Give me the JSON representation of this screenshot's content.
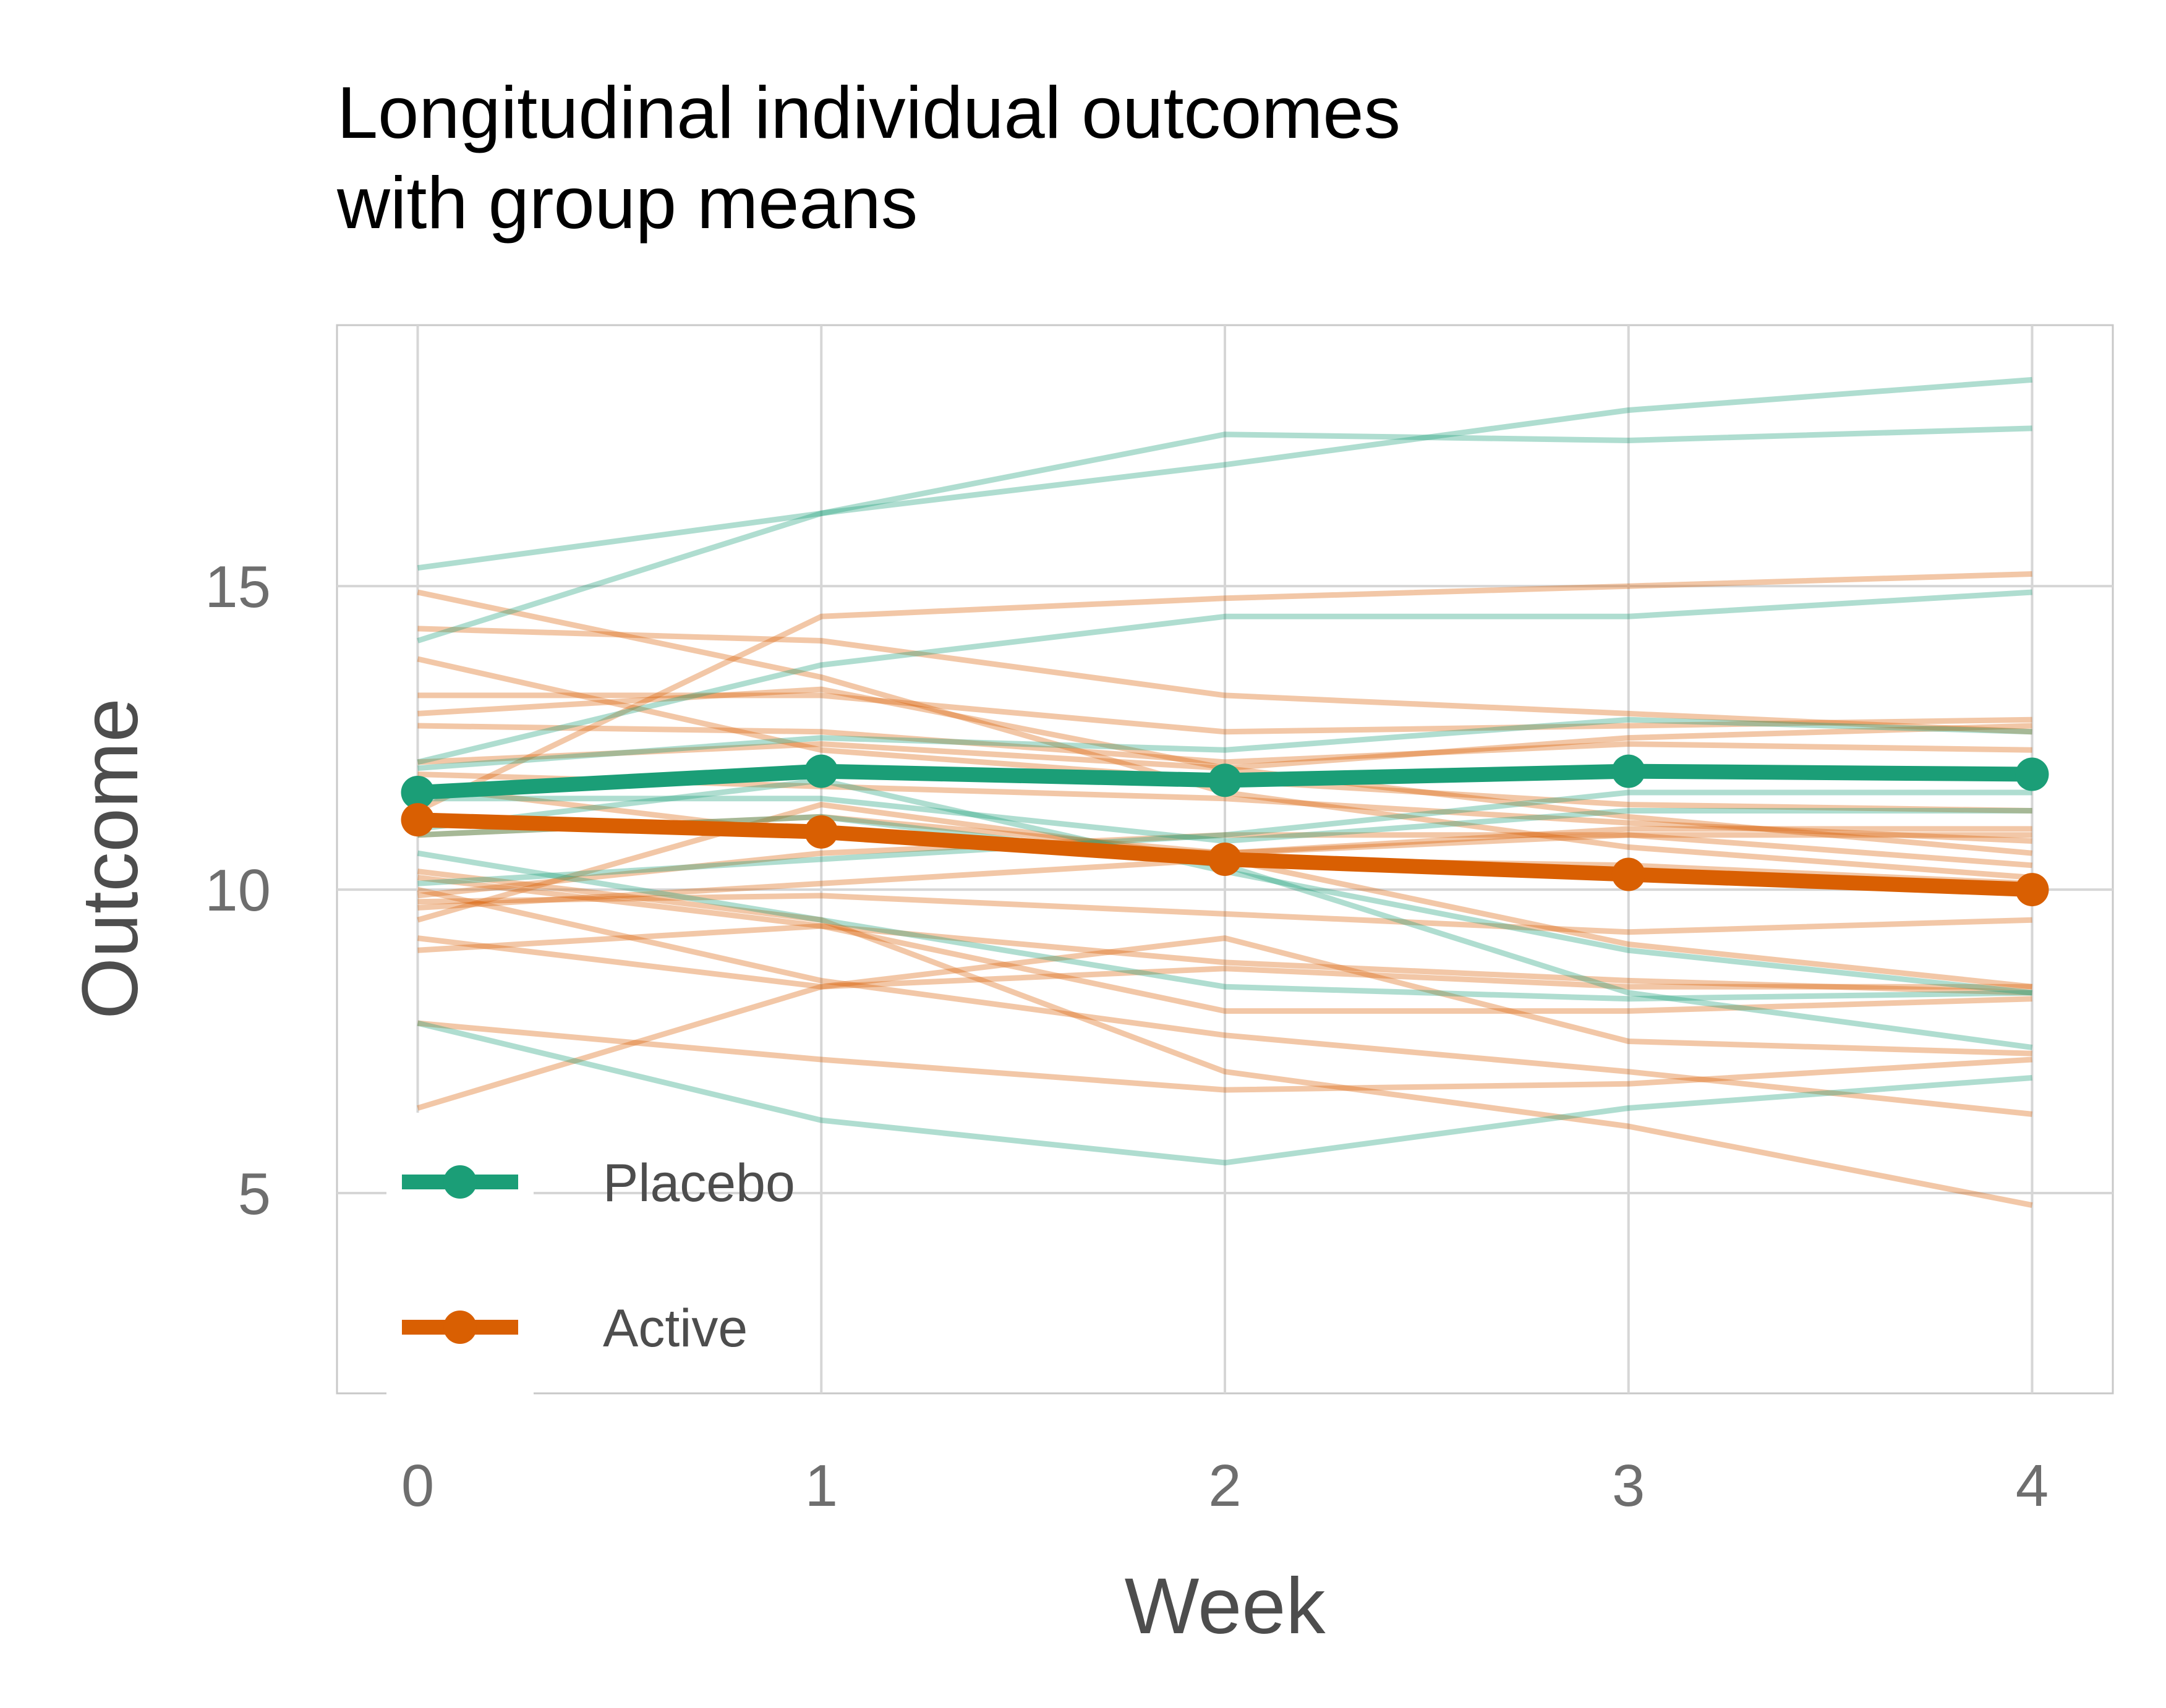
{
  "chart_data": {
    "type": "line",
    "title_lines": [
      "Longitudinal individual outcomes",
      "with group means"
    ],
    "xlabel": "Week",
    "ylabel": "Outcome",
    "x": [
      0,
      1,
      2,
      3,
      4
    ],
    "xlim": [
      -0.2,
      4.2
    ],
    "ylim": [
      1.7,
      19.3
    ],
    "xticks": [
      "0",
      "1",
      "2",
      "3",
      "4"
    ],
    "yticks": [
      5,
      10,
      15
    ],
    "grid": true,
    "legend_position": "bottom-left",
    "colors": {
      "Placebo": "#1b9e77",
      "Active": "#d95f02"
    },
    "legend": [
      {
        "label": "Placebo",
        "color": "#1b9e77"
      },
      {
        "label": "Active",
        "color": "#d95f02"
      }
    ],
    "means": [
      {
        "group": "Placebo",
        "values": [
          11.6,
          11.95,
          11.8,
          11.95,
          11.9
        ]
      },
      {
        "group": "Active",
        "values": [
          11.15,
          10.95,
          10.5,
          10.25,
          10.0
        ]
      }
    ],
    "individuals": {
      "Placebo": [
        [
          15.3,
          16.2,
          17.5,
          17.4,
          17.6
        ],
        [
          14.1,
          16.2,
          17.0,
          17.9,
          18.4
        ],
        [
          12.1,
          13.7,
          14.5,
          14.5,
          14.9
        ],
        [
          12.0,
          12.5,
          12.3,
          12.8,
          12.6
        ],
        [
          11.5,
          11.5,
          10.8,
          11.3,
          11.3
        ],
        [
          11.0,
          11.8,
          10.3,
          9.0,
          8.3
        ],
        [
          10.6,
          9.5,
          8.4,
          8.2,
          8.3
        ],
        [
          10.9,
          11.2,
          10.4,
          8.3,
          7.4
        ],
        [
          10.1,
          10.5,
          10.9,
          11.6,
          11.6
        ],
        [
          7.8,
          6.2,
          5.5,
          6.4,
          6.9
        ]
      ],
      "Active": [
        [
          14.3,
          14.1,
          13.2,
          12.9,
          12.6
        ],
        [
          13.8,
          12.3,
          11.8,
          11.4,
          11.3
        ],
        [
          13.2,
          13.2,
          12.6,
          12.7,
          12.8
        ],
        [
          12.7,
          12.6,
          12.1,
          12.4,
          12.3
        ],
        [
          12.1,
          12.4,
          12.0,
          12.5,
          12.7
        ],
        [
          11.9,
          11.7,
          11.5,
          11.1,
          10.8
        ],
        [
          11.7,
          10.9,
          10.6,
          10.9,
          10.9
        ],
        [
          12.9,
          13.3,
          12.0,
          11.2,
          10.6
        ],
        [
          10.9,
          11.2,
          10.6,
          11.0,
          11.0
        ],
        [
          9.9,
          10.6,
          10.9,
          10.9,
          10.4
        ],
        [
          14.9,
          13.5,
          11.6,
          10.7,
          10.2
        ],
        [
          11.3,
          14.5,
          14.8,
          15.0,
          15.2
        ],
        [
          10.3,
          9.5,
          7.0,
          6.1,
          4.8
        ],
        [
          10.2,
          9.4,
          8.8,
          8.5,
          8.3
        ],
        [
          9.8,
          9.9,
          9.6,
          9.3,
          9.5
        ],
        [
          9.5,
          11.4,
          10.5,
          9.1,
          8.4
        ],
        [
          9.2,
          8.4,
          8.7,
          8.4,
          8.4
        ],
        [
          9.0,
          9.4,
          8.0,
          8.0,
          8.2
        ],
        [
          10.0,
          8.5,
          7.6,
          7.0,
          6.3
        ],
        [
          7.8,
          7.2,
          6.7,
          6.8,
          7.2
        ],
        [
          6.4,
          8.4,
          9.2,
          7.5,
          7.3
        ],
        [
          9.7,
          10.1,
          10.5,
          10.4,
          10.1
        ]
      ]
    }
  }
}
